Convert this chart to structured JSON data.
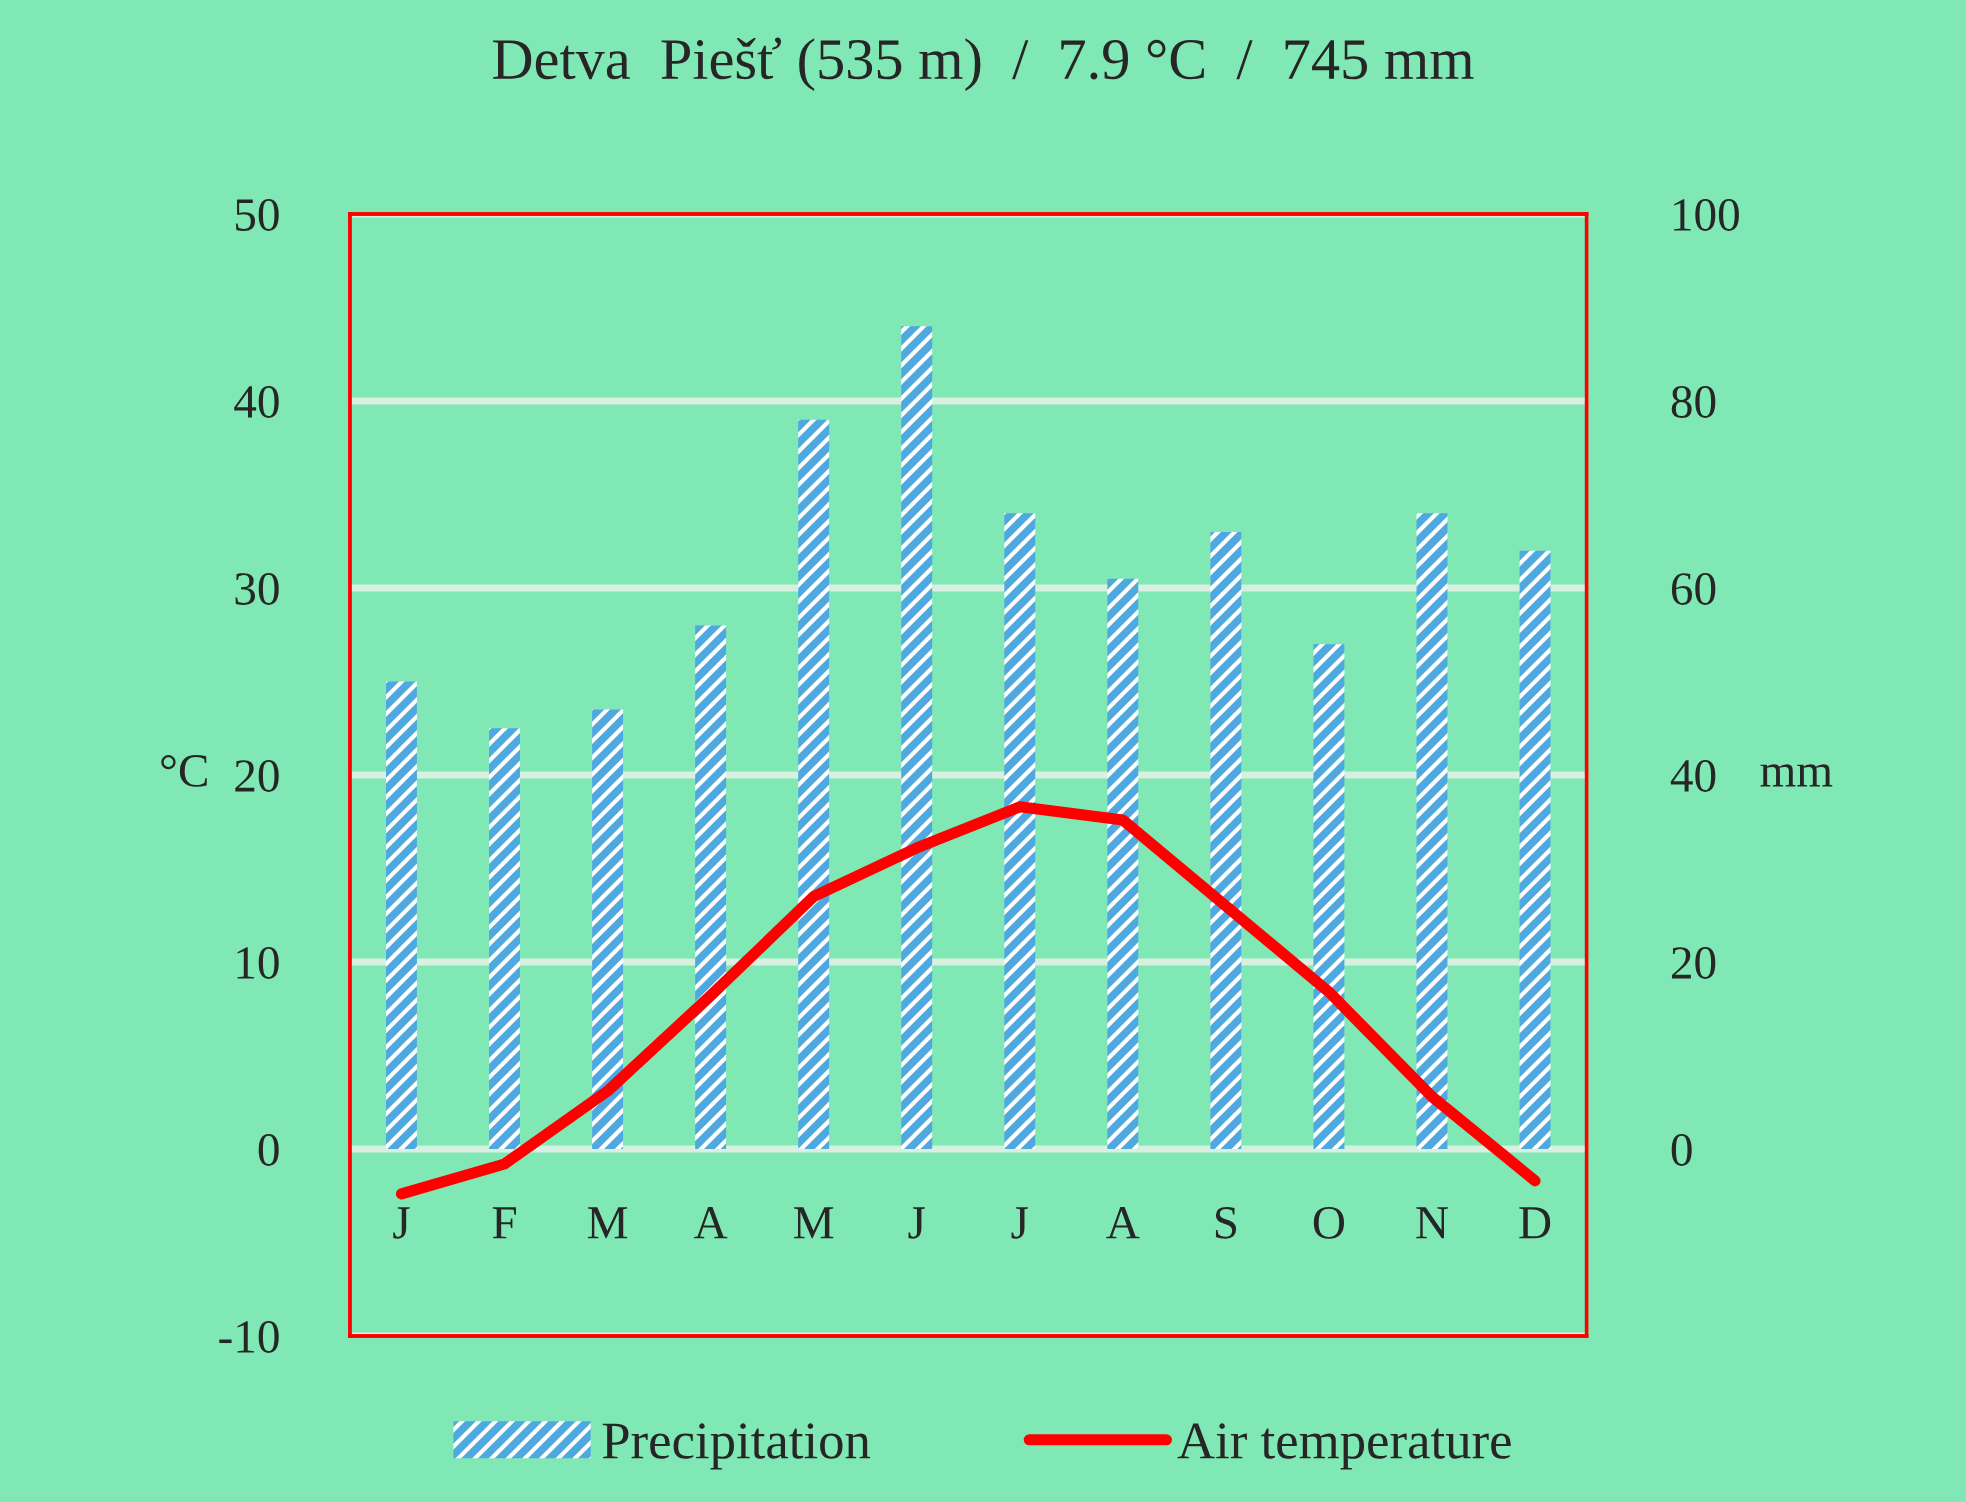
{
  "chart_data": {
    "type": "bar",
    "title": "Detva  Piešť (535 m)  /  7.9 °C  /  745 mm",
    "ylabel": "°C",
    "y2label": "mm",
    "categories": [
      "J",
      "F",
      "M",
      "A",
      "M",
      "J",
      "J",
      "A",
      "S",
      "O",
      "N",
      "D"
    ],
    "series": [
      {
        "name": "Precipitation",
        "axis": "y2",
        "color": "#4fa8e0",
        "values": [
          50,
          45,
          47,
          56,
          78,
          88,
          68,
          61,
          66,
          54,
          68,
          64
        ]
      },
      {
        "name": "Air temperature",
        "type": "line",
        "color": "#ff0000",
        "values": [
          -2.4,
          -0.8,
          3.1,
          8.2,
          13.5,
          16.1,
          18.3,
          17.6,
          13.0,
          8.4,
          2.8,
          -1.7
        ]
      }
    ],
    "ylim": [
      -10,
      50
    ],
    "yticks": [
      -10,
      0,
      10,
      20,
      30,
      40,
      50
    ],
    "y2lim": [
      -20,
      100
    ],
    "y2ticks": [
      {
        "value": -20,
        "label": null
      },
      0,
      20,
      40,
      60,
      80,
      100
    ],
    "grid": "y",
    "legend": "bottom",
    "marker": "none",
    "line_style": "solid"
  }
}
